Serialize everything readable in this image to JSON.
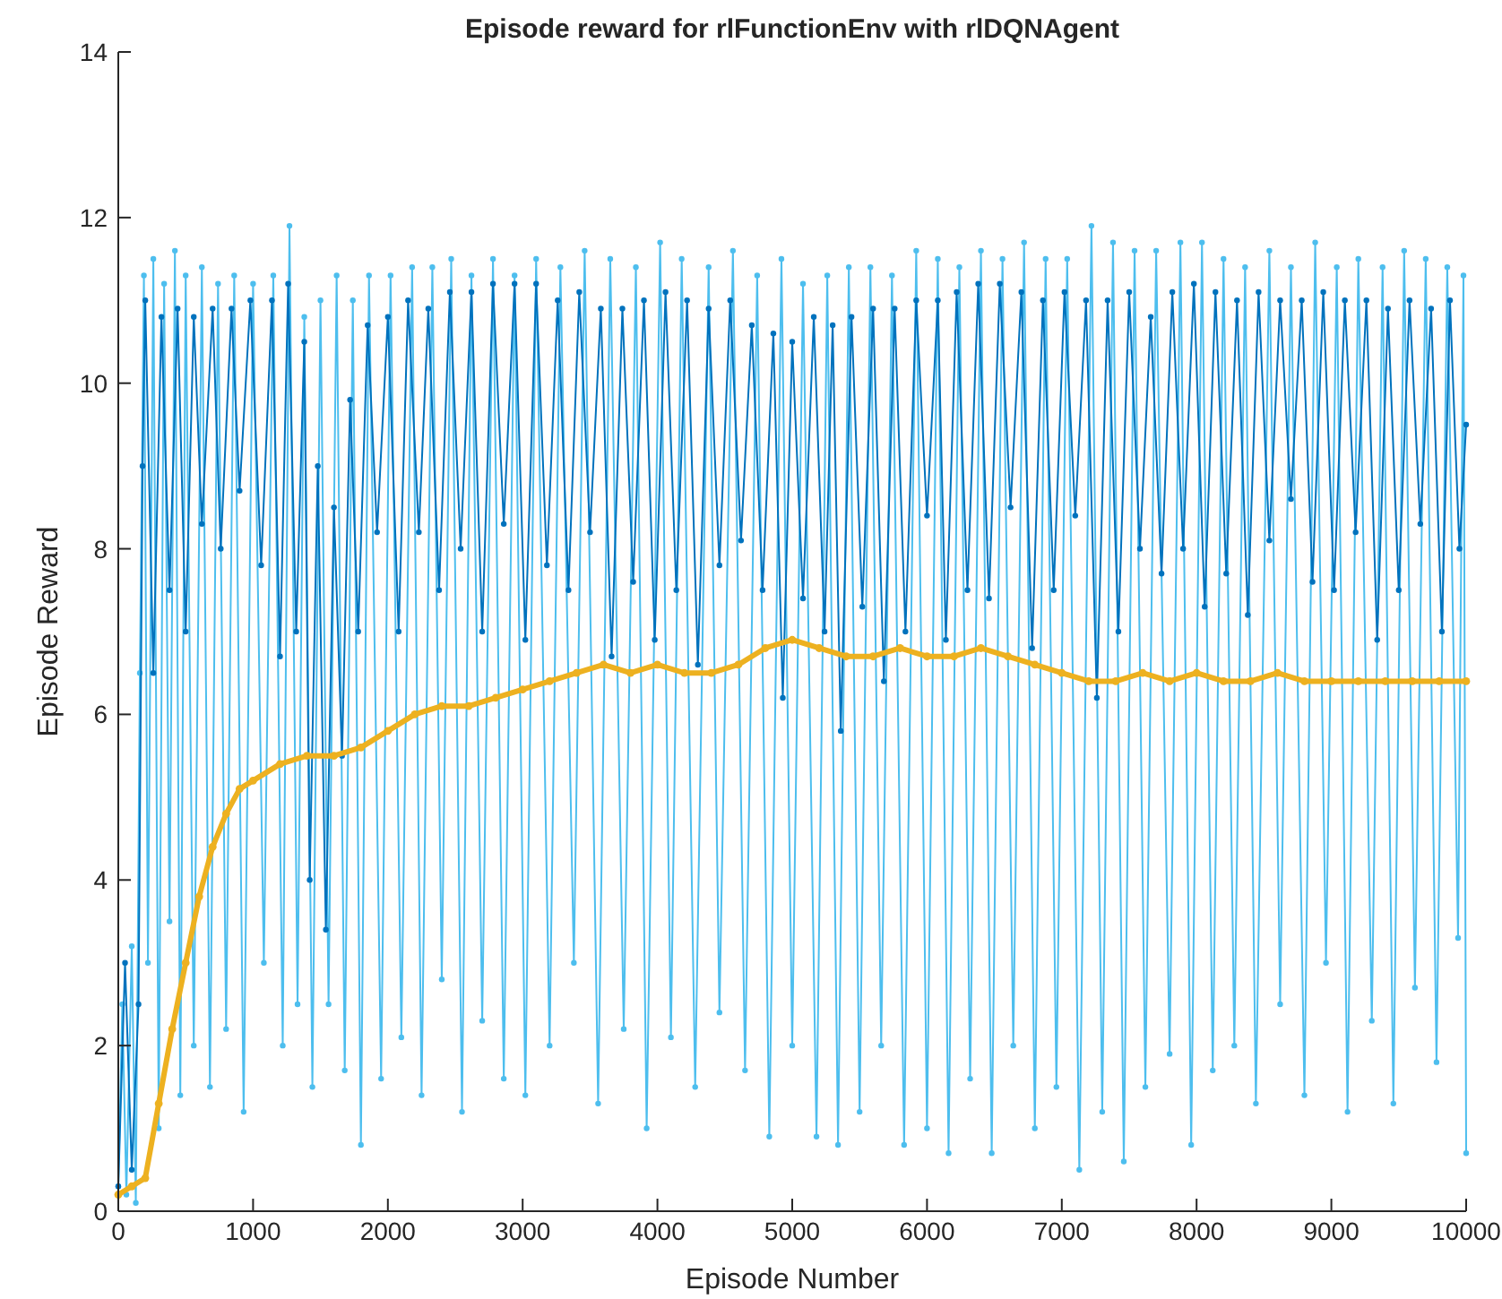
{
  "chart_data": {
    "type": "line",
    "title": "Episode reward for rlFunctionEnv with rlDQNAgent",
    "xlabel": "Episode Number",
    "ylabel": "Episode Reward",
    "xlim": [
      0,
      10000
    ],
    "ylim": [
      0,
      14
    ],
    "xticks": [
      0,
      1000,
      2000,
      3000,
      4000,
      5000,
      6000,
      7000,
      8000,
      9000,
      10000
    ],
    "yticks": [
      0,
      2,
      4,
      6,
      8,
      10,
      12,
      14
    ],
    "grid": false,
    "marker": "circle",
    "line_style": "solid",
    "series": [
      {
        "color": "#4dbeee",
        "x": [
          0,
          30,
          60,
          100,
          130,
          160,
          190,
          220,
          260,
          300,
          340,
          380,
          420,
          460,
          500,
          560,
          620,
          680,
          740,
          800,
          860,
          930,
          1000,
          1080,
          1150,
          1220,
          1270,
          1330,
          1380,
          1440,
          1500,
          1560,
          1620,
          1680,
          1740,
          1800,
          1860,
          1950,
          2020,
          2100,
          2180,
          2250,
          2330,
          2400,
          2470,
          2550,
          2620,
          2700,
          2780,
          2860,
          2940,
          3020,
          3100,
          3200,
          3280,
          3380,
          3460,
          3560,
          3650,
          3750,
          3840,
          3920,
          4020,
          4100,
          4180,
          4280,
          4380,
          4460,
          4560,
          4650,
          4740,
          4830,
          4920,
          5000,
          5080,
          5180,
          5260,
          5340,
          5420,
          5500,
          5580,
          5660,
          5740,
          5830,
          5920,
          6000,
          6080,
          6160,
          6240,
          6320,
          6400,
          6480,
          6560,
          6640,
          6720,
          6800,
          6880,
          6960,
          7040,
          7130,
          7220,
          7300,
          7380,
          7460,
          7540,
          7620,
          7700,
          7800,
          7880,
          7960,
          8040,
          8120,
          8200,
          8280,
          8360,
          8440,
          8540,
          8620,
          8700,
          8800,
          8880,
          8960,
          9040,
          9120,
          9200,
          9300,
          9380,
          9460,
          9540,
          9620,
          9700,
          9780,
          9860,
          9940,
          9980,
          10000
        ],
        "values": [
          0.3,
          2.5,
          0.2,
          3.2,
          0.1,
          6.5,
          11.3,
          3.0,
          11.5,
          1.0,
          11.2,
          3.5,
          11.6,
          1.4,
          11.3,
          2.0,
          11.4,
          1.5,
          11.2,
          2.2,
          11.3,
          1.2,
          11.2,
          3.0,
          11.3,
          2.0,
          11.9,
          2.5,
          10.8,
          1.5,
          11.0,
          2.5,
          11.3,
          1.7,
          11.0,
          0.8,
          11.3,
          1.6,
          11.3,
          2.1,
          11.4,
          1.4,
          11.4,
          2.8,
          11.5,
          1.2,
          11.3,
          2.3,
          11.5,
          1.6,
          11.3,
          1.4,
          11.5,
          2.0,
          11.4,
          3.0,
          11.6,
          1.3,
          11.5,
          2.2,
          11.4,
          1.0,
          11.7,
          2.1,
          11.5,
          1.5,
          11.4,
          2.4,
          11.6,
          1.7,
          11.3,
          0.9,
          11.5,
          2.0,
          11.2,
          0.9,
          11.3,
          0.8,
          11.4,
          1.2,
          11.4,
          2.0,
          11.3,
          0.8,
          11.6,
          1.0,
          11.5,
          0.7,
          11.4,
          1.6,
          11.6,
          0.7,
          11.5,
          2.0,
          11.7,
          1.0,
          11.5,
          1.5,
          11.5,
          0.5,
          11.9,
          1.2,
          11.7,
          0.6,
          11.6,
          1.5,
          11.6,
          1.9,
          11.7,
          0.8,
          11.7,
          1.7,
          11.5,
          2.0,
          11.4,
          1.3,
          11.6,
          2.5,
          11.4,
          1.4,
          11.7,
          3.0,
          11.4,
          1.2,
          11.5,
          2.3,
          11.4,
          1.3,
          11.6,
          2.7,
          11.5,
          1.8,
          11.4,
          3.3,
          11.3,
          0.7
        ]
      },
      {
        "color": "#0072bd",
        "x": [
          0,
          50,
          100,
          150,
          180,
          200,
          260,
          320,
          380,
          440,
          500,
          560,
          620,
          700,
          760,
          840,
          900,
          980,
          1060,
          1140,
          1200,
          1260,
          1320,
          1380,
          1420,
          1480,
          1540,
          1600,
          1660,
          1720,
          1780,
          1850,
          1920,
          2000,
          2080,
          2150,
          2230,
          2300,
          2380,
          2460,
          2540,
          2620,
          2700,
          2780,
          2860,
          2940,
          3020,
          3100,
          3180,
          3260,
          3340,
          3420,
          3500,
          3580,
          3660,
          3740,
          3820,
          3900,
          3980,
          4060,
          4140,
          4220,
          4300,
          4380,
          4460,
          4540,
          4620,
          4700,
          4780,
          4860,
          4930,
          5000,
          5080,
          5160,
          5240,
          5300,
          5360,
          5440,
          5520,
          5600,
          5680,
          5760,
          5840,
          5920,
          6000,
          6080,
          6140,
          6220,
          6300,
          6380,
          6460,
          6540,
          6620,
          6700,
          6780,
          6860,
          6940,
          7020,
          7100,
          7180,
          7260,
          7340,
          7420,
          7500,
          7580,
          7660,
          7740,
          7820,
          7900,
          7980,
          8060,
          8140,
          8220,
          8300,
          8380,
          8460,
          8540,
          8620,
          8700,
          8780,
          8860,
          8940,
          9020,
          9100,
          9180,
          9260,
          9340,
          9420,
          9500,
          9580,
          9660,
          9740,
          9820,
          9880,
          9950,
          10000
        ],
        "values": [
          0.3,
          3.0,
          0.5,
          2.5,
          9.0,
          11.0,
          6.5,
          10.8,
          7.5,
          10.9,
          7.0,
          10.8,
          8.3,
          10.9,
          8.0,
          10.9,
          8.7,
          11.0,
          7.8,
          11.0,
          6.7,
          11.2,
          7.0,
          10.5,
          4.0,
          9.0,
          3.4,
          8.5,
          5.5,
          9.8,
          7.0,
          10.7,
          8.2,
          10.8,
          7.0,
          11.0,
          8.2,
          10.9,
          7.5,
          11.1,
          8.0,
          11.1,
          7.0,
          11.2,
          8.3,
          11.2,
          6.9,
          11.2,
          7.8,
          11.0,
          7.5,
          11.1,
          8.2,
          10.9,
          6.7,
          10.9,
          7.6,
          11.0,
          6.9,
          11.1,
          7.5,
          11.0,
          6.6,
          10.9,
          7.8,
          11.0,
          8.1,
          10.7,
          7.5,
          10.6,
          6.2,
          10.5,
          7.4,
          10.8,
          7.0,
          10.7,
          5.8,
          10.8,
          7.3,
          10.9,
          6.4,
          10.9,
          7.0,
          11.0,
          8.4,
          11.0,
          6.9,
          11.1,
          7.5,
          11.2,
          7.4,
          11.2,
          8.5,
          11.1,
          6.8,
          11.0,
          7.5,
          11.1,
          8.4,
          11.0,
          6.2,
          11.0,
          7.0,
          11.1,
          8.0,
          10.8,
          7.7,
          11.1,
          8.0,
          11.2,
          7.3,
          11.1,
          7.7,
          11.0,
          7.2,
          11.1,
          8.1,
          11.0,
          8.6,
          11.0,
          7.6,
          11.1,
          7.5,
          11.0,
          8.2,
          11.0,
          6.9,
          10.9,
          7.5,
          11.0,
          8.3,
          10.9,
          7.0,
          11.0,
          8.0,
          9.5
        ]
      },
      {
        "color": "#edb120",
        "x": [
          0,
          100,
          200,
          300,
          400,
          500,
          600,
          700,
          800,
          900,
          1000,
          1200,
          1400,
          1600,
          1800,
          2000,
          2200,
          2400,
          2600,
          2800,
          3000,
          3200,
          3400,
          3600,
          3800,
          4000,
          4200,
          4400,
          4600,
          4800,
          5000,
          5200,
          5400,
          5600,
          5800,
          6000,
          6200,
          6400,
          6600,
          6800,
          7000,
          7200,
          7400,
          7600,
          7800,
          8000,
          8200,
          8400,
          8600,
          8800,
          9000,
          9200,
          9400,
          9600,
          9800,
          10000
        ],
        "values": [
          0.2,
          0.3,
          0.4,
          1.3,
          2.2,
          3.0,
          3.8,
          4.4,
          4.8,
          5.1,
          5.2,
          5.4,
          5.5,
          5.5,
          5.6,
          5.8,
          6.0,
          6.1,
          6.1,
          6.2,
          6.3,
          6.4,
          6.5,
          6.6,
          6.5,
          6.6,
          6.5,
          6.5,
          6.6,
          6.8,
          6.9,
          6.8,
          6.7,
          6.7,
          6.8,
          6.7,
          6.7,
          6.8,
          6.7,
          6.6,
          6.5,
          6.4,
          6.4,
          6.5,
          6.4,
          6.5,
          6.4,
          6.4,
          6.5,
          6.4,
          6.4,
          6.4,
          6.4,
          6.4,
          6.4,
          6.4
        ]
      }
    ]
  }
}
